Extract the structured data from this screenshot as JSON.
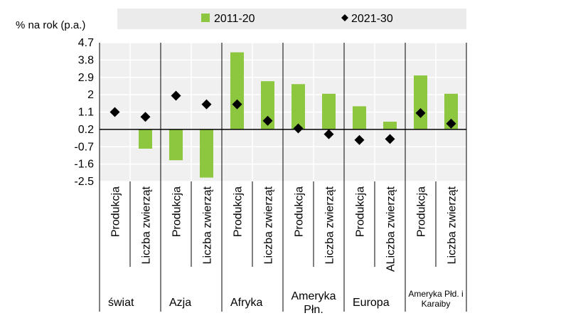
{
  "chart_data": {
    "type": "bar",
    "ylabel": "% na rok (p.a.)",
    "ylim": [
      -2.5,
      4.7
    ],
    "yticks": [
      4.7,
      3.8,
      2.9,
      2,
      1.1,
      0.2,
      -0.7,
      -1.6,
      -2.5
    ],
    "grid": true,
    "legend_position": "top",
    "categories": [
      "Produkcja",
      "Liczba zwierząt",
      "Produkcja",
      "Liczba zwierząt",
      "Produkcja",
      "Liczba zwierząt",
      "Produkcja",
      "Liczba zwierząt",
      "Produkcja",
      "ALiczba zwierząt",
      "Produkcja",
      "Liczba zwierząt"
    ],
    "groups": [
      {
        "label": "świat",
        "span": 2
      },
      {
        "label": "Azja",
        "span": 2
      },
      {
        "label": "Afryka",
        "span": 2
      },
      {
        "label": "Ameryka Płn.",
        "span": 2
      },
      {
        "label": "Europa",
        "span": 2
      },
      {
        "label": "Ameryka Płd. i Karaiby",
        "span": 2
      }
    ],
    "series": [
      {
        "name": "2011-20",
        "kind": "bar",
        "color": "#8dc63f",
        "values": [
          0,
          -1.0,
          -1.6,
          -2.5,
          4.0,
          2.5,
          2.35,
          1.85,
          1.2,
          0.4,
          2.8,
          1.85
        ]
      },
      {
        "name": "2021-30",
        "kind": "marker",
        "color": "#000000",
        "values": [
          1.1,
          0.85,
          1.95,
          1.5,
          1.5,
          0.65,
          0.25,
          -0.05,
          -0.35,
          -0.3,
          1.05,
          0.5
        ]
      }
    ]
  }
}
